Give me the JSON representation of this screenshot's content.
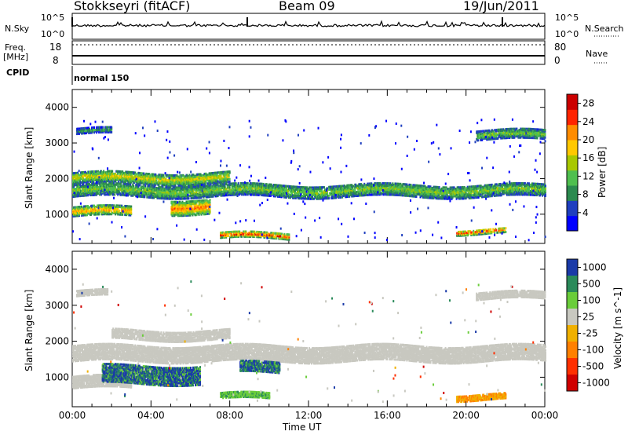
{
  "header": {
    "station": "Stokkseyri (fitACF)",
    "beam": "Beam 09",
    "date": "19/Jun/2011"
  },
  "panels": {
    "nsky": {
      "left_label": "N.Sky",
      "right_label": "N.Search",
      "left_ticks": [
        "10^5",
        "10^0"
      ],
      "right_ticks": [
        "10^5",
        "10^0"
      ]
    },
    "freq": {
      "left_label_1": "Freq.",
      "left_label_2": "[MHz]",
      "right_label": "Nave",
      "left_ticks": [
        "18",
        "8"
      ],
      "right_ticks": [
        "80",
        "0"
      ]
    },
    "cpid": {
      "label": "CPID",
      "program": "normal 150"
    }
  },
  "colors": {
    "power": [
      "#0000ff",
      "#1f3fbf",
      "#2b8a4f",
      "#4fbf4f",
      "#a8c800",
      "#ffc800",
      "#ff8c00",
      "#ff2400",
      "#cc0000"
    ],
    "velocity": [
      "#1a3aa8",
      "#2a8a5a",
      "#6acd3a",
      "#c8c8c0",
      "#f0b000",
      "#ff8000",
      "#ff3000",
      "#d00000"
    ],
    "ground_scatter": "#c8c8c0"
  },
  "chart_data": [
    {
      "type": "heatmap",
      "name": "power",
      "xlabel": "",
      "ylabel": "Slant Range [km]",
      "ylim": [
        180,
        4500
      ],
      "xlim": [
        "00:00",
        "24:00"
      ],
      "y_ticks": [
        1000,
        2000,
        3000,
        4000
      ],
      "colorbar_label": "Power [dB]",
      "colorbar_ticks": [
        4,
        8,
        12,
        16,
        20,
        24,
        28
      ],
      "colorbar_range": [
        0,
        30
      ],
      "bands": [
        {
          "start_h": 0.0,
          "end_h": 24.0,
          "range_km": 1700,
          "width_km": 350,
          "level": 12
        },
        {
          "start_h": 0.0,
          "end_h": 8.0,
          "range_km": 2050,
          "width_km": 300,
          "level": 16
        },
        {
          "start_h": 0.0,
          "end_h": 3.0,
          "range_km": 1100,
          "width_km": 250,
          "level": 20
        },
        {
          "start_h": 5.0,
          "end_h": 7.0,
          "range_km": 1250,
          "width_km": 400,
          "level": 22
        },
        {
          "start_h": 7.5,
          "end_h": 11.0,
          "range_km": 420,
          "width_km": 150,
          "level": 26
        },
        {
          "start_h": 19.5,
          "end_h": 22.0,
          "range_km": 550,
          "width_km": 130,
          "level": 24
        },
        {
          "start_h": 0.2,
          "end_h": 2.0,
          "range_km": 3350,
          "width_km": 150,
          "level": 8
        },
        {
          "start_h": 20.5,
          "end_h": 24.0,
          "range_km": 3250,
          "width_km": 250,
          "level": 12
        }
      ]
    },
    {
      "type": "heatmap",
      "name": "velocity",
      "xlabel": "Time UT",
      "ylabel": "Slant Range [km]",
      "ylim": [
        180,
        4500
      ],
      "xlim": [
        "00:00",
        "24:00"
      ],
      "x_ticks": [
        "00:00",
        "04:00",
        "08:00",
        "12:00",
        "16:00",
        "20:00",
        "00:00"
      ],
      "y_ticks": [
        1000,
        2000,
        3000,
        4000
      ],
      "colorbar_label": "Velocity [m s^-1]",
      "colorbar_ticks": [
        "1000",
        "500",
        "100",
        "25",
        "-25",
        "-100",
        "-500",
        "-1000"
      ],
      "bands": [
        {
          "start_h": 0.0,
          "end_h": 24.0,
          "range_km": 1700,
          "width_km": 450,
          "class": "ground"
        },
        {
          "start_h": 2.0,
          "end_h": 8.0,
          "range_km": 2200,
          "width_km": 250,
          "class": "ground"
        },
        {
          "start_h": 0.0,
          "end_h": 3.0,
          "range_km": 900,
          "width_km": 350,
          "class": "ground"
        },
        {
          "start_h": 1.5,
          "end_h": 6.5,
          "range_km": 1100,
          "width_km": 500,
          "class": "positive"
        },
        {
          "start_h": 8.5,
          "end_h": 10.5,
          "range_km": 1300,
          "width_km": 300,
          "class": "positive"
        },
        {
          "start_h": 7.5,
          "end_h": 10.0,
          "range_km": 500,
          "width_km": 150,
          "class": "slow-positive"
        },
        {
          "start_h": 19.5,
          "end_h": 22.0,
          "range_km": 480,
          "width_km": 150,
          "class": "negative"
        },
        {
          "start_h": 0.2,
          "end_h": 1.8,
          "range_km": 3350,
          "width_km": 150,
          "class": "ground"
        },
        {
          "start_h": 20.5,
          "end_h": 24.0,
          "range_km": 3300,
          "width_km": 200,
          "class": "ground"
        }
      ]
    }
  ]
}
